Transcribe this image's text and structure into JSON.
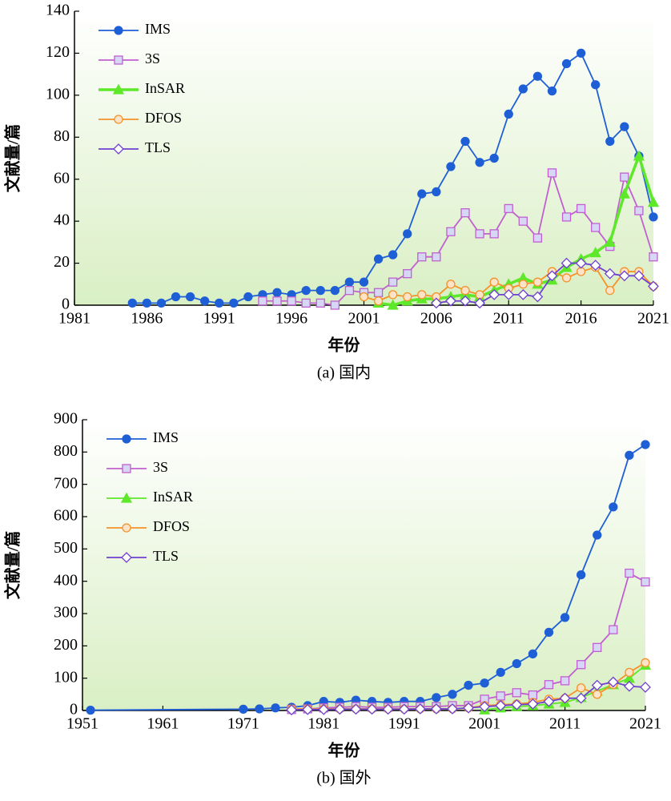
{
  "chart_data": [
    {
      "type": "line",
      "title": "(a) 国内",
      "xlabel": "年份",
      "ylabel": "文献量/篇",
      "xlim": [
        1981,
        2021
      ],
      "xticks": [
        1981,
        1986,
        1991,
        1996,
        2001,
        2006,
        2011,
        2016,
        2021
      ],
      "ylim": [
        0,
        140
      ],
      "yticks": [
        0,
        20,
        40,
        60,
        80,
        100,
        120,
        140
      ],
      "legend": "upper left",
      "series": [
        {
          "name": "IMS",
          "color": "#1f5fd6",
          "marker": "circle",
          "x": [
            1985,
            1986,
            1987,
            1988,
            1989,
            1990,
            1991,
            1992,
            1993,
            1994,
            1995,
            1996,
            1997,
            1998,
            1999,
            2000,
            2001,
            2002,
            2003,
            2004,
            2005,
            2006,
            2007,
            2008,
            2009,
            2010,
            2011,
            2012,
            2013,
            2014,
            2015,
            2016,
            2017,
            2018,
            2019,
            2020,
            2021
          ],
          "values": [
            1,
            1,
            1,
            4,
            4,
            2,
            1,
            1,
            4,
            5,
            6,
            5,
            7,
            7,
            7,
            11,
            11,
            22,
            24,
            34,
            53,
            54,
            66,
            78,
            68,
            70,
            91,
            103,
            109,
            102,
            115,
            120,
            105,
            78,
            85,
            71,
            42
          ]
        },
        {
          "name": "3S",
          "color": "#c060d0",
          "marker": "square",
          "x": [
            1994,
            1995,
            1996,
            1997,
            1998,
            1999,
            2000,
            2001,
            2002,
            2003,
            2004,
            2005,
            2006,
            2007,
            2008,
            2009,
            2010,
            2011,
            2012,
            2013,
            2014,
            2015,
            2016,
            2017,
            2018,
            2019,
            2020,
            2021
          ],
          "values": [
            2,
            2,
            2,
            1,
            1,
            0,
            7,
            6,
            6,
            11,
            15,
            23,
            23,
            35,
            44,
            34,
            34,
            46,
            40,
            32,
            63,
            42,
            46,
            37,
            28,
            61,
            45,
            23
          ]
        },
        {
          "name": "InSAR",
          "color": "#5ee82a",
          "marker": "triangle",
          "linewidth": 3.5,
          "x": [
            2002,
            2003,
            2004,
            2005,
            2006,
            2007,
            2008,
            2009,
            2010,
            2011,
            2012,
            2013,
            2014,
            2015,
            2016,
            2017,
            2018,
            2019,
            2020,
            2021
          ],
          "values": [
            1,
            0,
            2,
            3,
            3,
            4,
            5,
            4,
            7,
            10,
            13,
            10,
            12,
            18,
            22,
            25,
            30,
            53,
            71,
            49
          ]
        },
        {
          "name": "DFOS",
          "color": "#f5922a",
          "marker": "circle-open",
          "x": [
            2001,
            2002,
            2003,
            2004,
            2005,
            2006,
            2007,
            2008,
            2009,
            2010,
            2011,
            2012,
            2013,
            2014,
            2015,
            2016,
            2017,
            2018,
            2019,
            2020,
            2021
          ],
          "values": [
            4,
            2,
            5,
            4,
            5,
            4,
            10,
            7,
            5,
            11,
            8,
            10,
            11,
            16,
            13,
            16,
            18,
            7,
            16,
            16,
            9
          ]
        },
        {
          "name": "TLS",
          "color": "#7040d0",
          "marker": "diamond",
          "x": [
            2006,
            2007,
            2008,
            2009,
            2010,
            2011,
            2012,
            2013,
            2014,
            2015,
            2016,
            2017,
            2018,
            2019,
            2020,
            2021
          ],
          "values": [
            1,
            2,
            2,
            1,
            5,
            5,
            5,
            4,
            14,
            20,
            20,
            19,
            15,
            14,
            14,
            9
          ]
        }
      ]
    },
    {
      "type": "line",
      "title": "(b) 国外",
      "xlabel": "年份",
      "ylabel": "文献量/篇",
      "xlim": [
        1951,
        2021
      ],
      "xticks": [
        1951,
        1961,
        1971,
        1981,
        1991,
        2001,
        2011,
        2021
      ],
      "ylim": [
        0,
        900
      ],
      "yticks": [
        0,
        100,
        200,
        300,
        400,
        500,
        600,
        700,
        800,
        900
      ],
      "legend": "upper left",
      "series": [
        {
          "name": "IMS",
          "color": "#1f5fd6",
          "marker": "circle",
          "x": [
            1952,
            1971,
            1973,
            1975,
            1977,
            1979,
            1981,
            1983,
            1985,
            1987,
            1989,
            1991,
            1993,
            1995,
            1997,
            1999,
            2001,
            2003,
            2005,
            2007,
            2009,
            2011,
            2013,
            2015,
            2017,
            2019,
            2021
          ],
          "values": [
            1,
            4,
            5,
            8,
            10,
            15,
            28,
            25,
            32,
            28,
            25,
            28,
            28,
            40,
            50,
            78,
            85,
            118,
            145,
            175,
            242,
            288,
            420,
            543,
            630,
            790,
            823
          ]
        },
        {
          "name": "3S",
          "color": "#c060d0",
          "marker": "square",
          "x": [
            1977,
            1979,
            1981,
            1983,
            1985,
            1987,
            1989,
            1991,
            1993,
            1995,
            1997,
            1999,
            2001,
            2003,
            2005,
            2007,
            2009,
            2011,
            2013,
            2015,
            2017,
            2019,
            2021
          ],
          "values": [
            3,
            5,
            8,
            10,
            12,
            10,
            10,
            12,
            12,
            12,
            15,
            15,
            35,
            45,
            55,
            48,
            80,
            92,
            142,
            195,
            250,
            425,
            398
          ]
        },
        {
          "name": "InSAR",
          "color": "#5ee82a",
          "marker": "triangle",
          "x": [
            2001,
            2003,
            2005,
            2007,
            2009,
            2011,
            2013,
            2015,
            2017,
            2019,
            2021
          ],
          "values": [
            2,
            8,
            12,
            15,
            20,
            25,
            40,
            60,
            80,
            100,
            140
          ]
        },
        {
          "name": "DFOS",
          "color": "#f5922a",
          "marker": "circle-open",
          "x": [
            1977,
            1979,
            1981,
            1983,
            1985,
            1987,
            1989,
            1991,
            1993,
            1995,
            1997,
            1999,
            2001,
            2003,
            2005,
            2007,
            2009,
            2011,
            2013,
            2015,
            2017,
            2019,
            2021
          ],
          "values": [
            5,
            5,
            5,
            5,
            5,
            5,
            5,
            5,
            5,
            5,
            5,
            8,
            15,
            18,
            20,
            25,
            35,
            38,
            70,
            50,
            80,
            118,
            148
          ]
        },
        {
          "name": "TLS",
          "color": "#7040d0",
          "marker": "diamond",
          "x": [
            1977,
            1979,
            1981,
            1983,
            1985,
            1987,
            1989,
            1991,
            1993,
            1995,
            1997,
            1999,
            2001,
            2003,
            2005,
            2007,
            2009,
            2011,
            2013,
            2015,
            2017,
            2019,
            2021
          ],
          "values": [
            2,
            3,
            3,
            4,
            4,
            4,
            4,
            4,
            5,
            5,
            5,
            8,
            12,
            15,
            18,
            20,
            28,
            38,
            38,
            78,
            88,
            75,
            72
          ]
        }
      ]
    }
  ]
}
